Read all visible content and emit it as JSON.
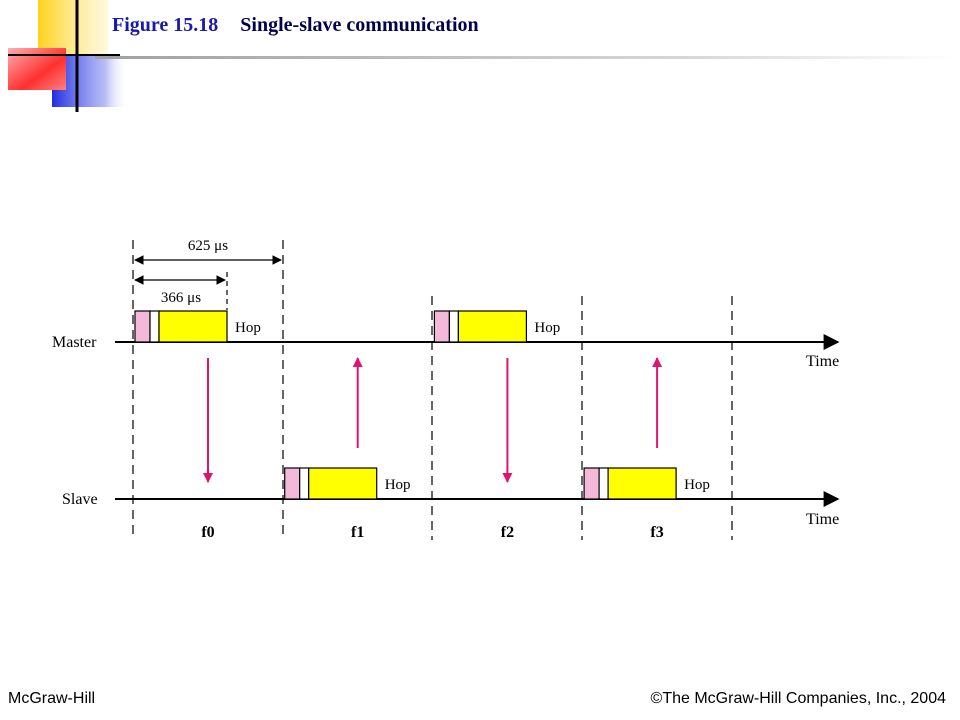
{
  "header": {
    "figure_number": "Figure 15.18",
    "figure_title": "Single-slave communication"
  },
  "diagram": {
    "timing": {
      "slot_duration": "625 μs",
      "packet_duration": "366 μs"
    },
    "lines": [
      {
        "id": "master",
        "label": "Master",
        "axis_label": "Time"
      },
      {
        "id": "slave",
        "label": "Slave",
        "axis_label": "Time"
      }
    ],
    "hop_label": "Hop",
    "frequencies": [
      "f0",
      "f1",
      "f2",
      "f3"
    ],
    "packets": [
      {
        "line": "master",
        "slot": 0
      },
      {
        "line": "slave",
        "slot": 1
      },
      {
        "line": "master",
        "slot": 2
      },
      {
        "line": "slave",
        "slot": 3
      }
    ],
    "arrows": [
      {
        "slot": 0,
        "direction": "down"
      },
      {
        "slot": 1,
        "direction": "up"
      },
      {
        "slot": 2,
        "direction": "down"
      },
      {
        "slot": 3,
        "direction": "up"
      }
    ],
    "colors": {
      "packet_body": "#ffff00",
      "packet_header": "#f4b8d8",
      "arrow": "#e0146e",
      "line": "#000000"
    }
  },
  "footer": {
    "publisher": "McGraw-Hill",
    "copyright": "©The McGraw-Hill Companies, Inc., 2004"
  }
}
